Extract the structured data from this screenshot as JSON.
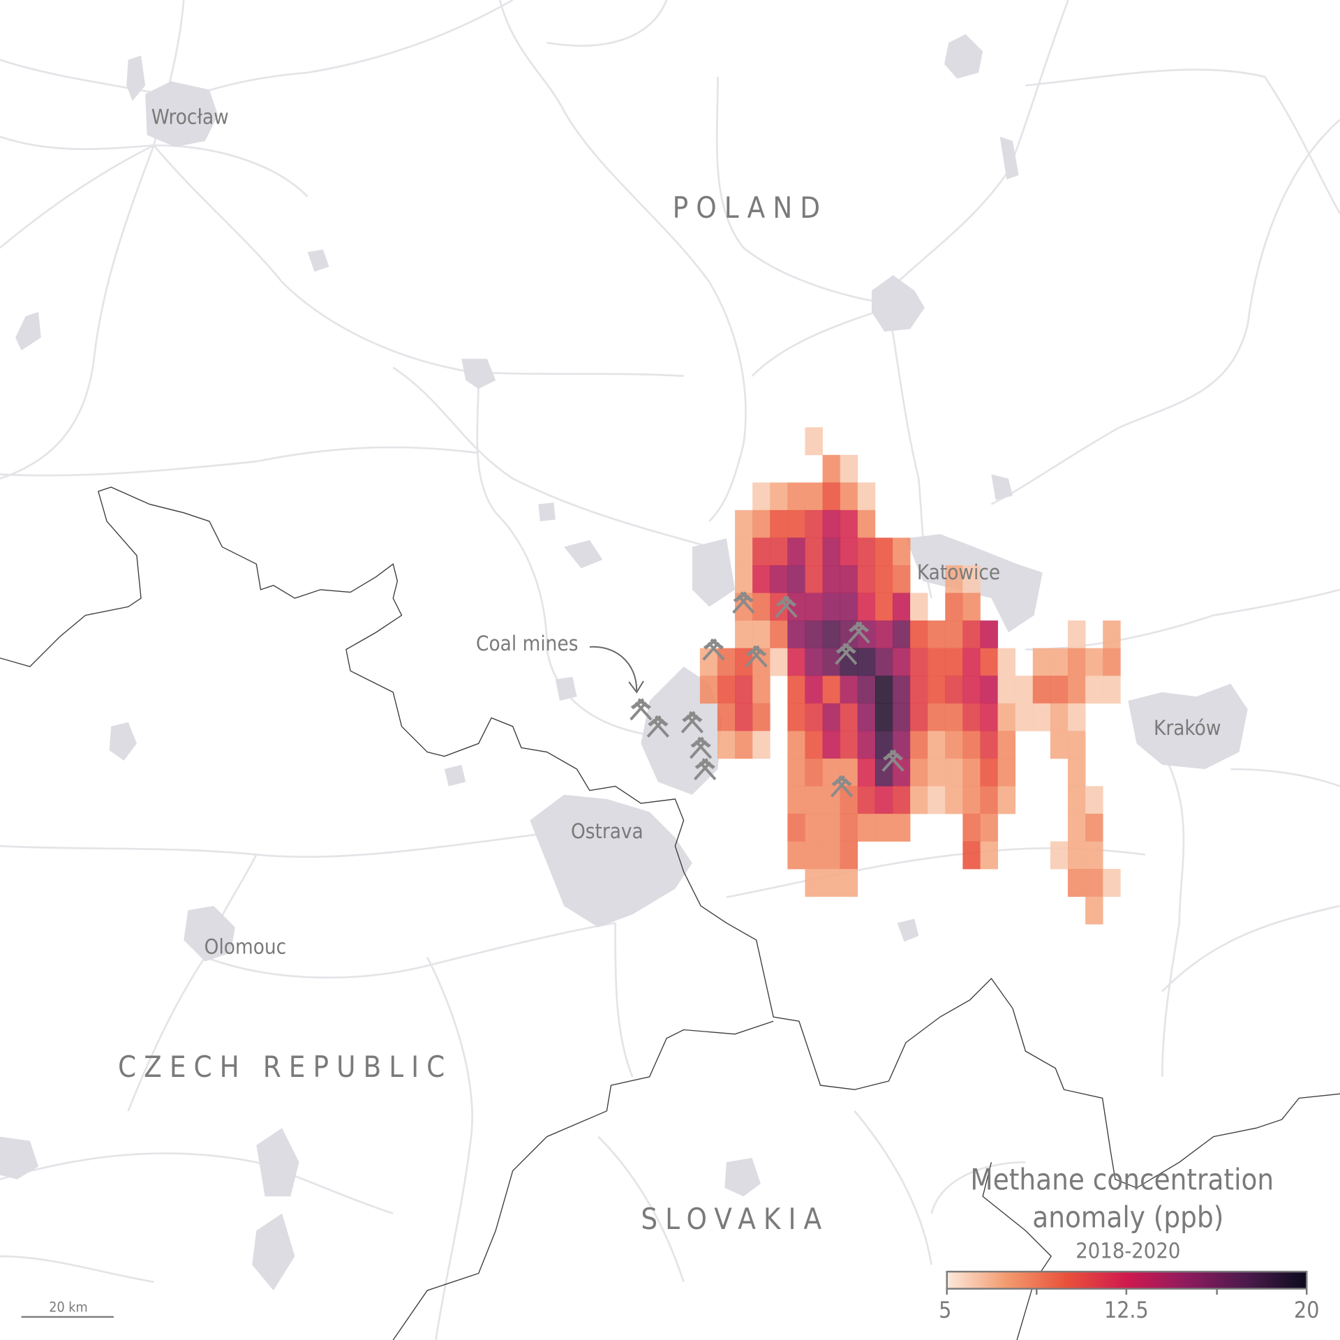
{
  "labels": {
    "cities": [
      "Wrocław",
      "Katowice",
      "Ostrava",
      "Kraków",
      "Olomouc"
    ],
    "countries": [
      "POLAND",
      "CZECH REPUBLIC",
      "SLOVAKIA"
    ],
    "annotation": "Coal mines"
  },
  "legend": {
    "title_line1": "Methane concentration",
    "title_line2": "anomaly (ppb)",
    "period": "2018-2020",
    "ticks": [
      "5",
      "12.5",
      "20"
    ],
    "range": [
      5,
      20
    ],
    "color_stops": [
      "#fbe9dc",
      "#f39a6e",
      "#e9513b",
      "#cf1a4f",
      "#8e1b5e",
      "#4b1a4c",
      "#0b0b1e"
    ]
  },
  "scale_bar": {
    "label": "20 km"
  },
  "icons": {
    "mine": "crossed-hammers-icon"
  },
  "chart_data": {
    "type": "heatmap",
    "title": "Methane concentration anomaly (ppb)",
    "subtitle": "2018-2020",
    "unit": "ppb",
    "zlim": [
      5,
      20
    ],
    "cells": [
      [
        0,
        6,
        6
      ],
      [
        1,
        7,
        8
      ],
      [
        1,
        8,
        6
      ],
      [
        2,
        3,
        6
      ],
      [
        2,
        4,
        7
      ],
      [
        2,
        5,
        8
      ],
      [
        2,
        6,
        8
      ],
      [
        2,
        7,
        10
      ],
      [
        2,
        8,
        8
      ],
      [
        2,
        9,
        6
      ],
      [
        3,
        2,
        7
      ],
      [
        3,
        3,
        8
      ],
      [
        3,
        4,
        10
      ],
      [
        3,
        5,
        10
      ],
      [
        3,
        6,
        11
      ],
      [
        3,
        7,
        13
      ],
      [
        3,
        8,
        12
      ],
      [
        3,
        9,
        8
      ],
      [
        4,
        2,
        7
      ],
      [
        4,
        3,
        11
      ],
      [
        4,
        4,
        11
      ],
      [
        4,
        5,
        14
      ],
      [
        4,
        6,
        11
      ],
      [
        4,
        7,
        14
      ],
      [
        4,
        8,
        12
      ],
      [
        4,
        9,
        11
      ],
      [
        4,
        10,
        10
      ],
      [
        4,
        11,
        8
      ],
      [
        5,
        2,
        7
      ],
      [
        5,
        3,
        12
      ],
      [
        5,
        4,
        14
      ],
      [
        5,
        5,
        15
      ],
      [
        5,
        6,
        11
      ],
      [
        5,
        7,
        14
      ],
      [
        5,
        8,
        14
      ],
      [
        5,
        9,
        11
      ],
      [
        5,
        10,
        10
      ],
      [
        5,
        11,
        9
      ],
      [
        5,
        14,
        7
      ],
      [
        5,
        15,
        6
      ],
      [
        6,
        2,
        8
      ],
      [
        6,
        3,
        9
      ],
      [
        6,
        4,
        11
      ],
      [
        6,
        5,
        14
      ],
      [
        6,
        6,
        14
      ],
      [
        6,
        7,
        15
      ],
      [
        6,
        8,
        15
      ],
      [
        6,
        9,
        12
      ],
      [
        6,
        10,
        10
      ],
      [
        6,
        11,
        13
      ],
      [
        6,
        12,
        6
      ],
      [
        6,
        14,
        9
      ],
      [
        6,
        15,
        8
      ],
      [
        7,
        2,
        7
      ],
      [
        7,
        3,
        7
      ],
      [
        7,
        4,
        9
      ],
      [
        7,
        5,
        15
      ],
      [
        7,
        6,
        16
      ],
      [
        7,
        7,
        17
      ],
      [
        7,
        8,
        16
      ],
      [
        7,
        9,
        15
      ],
      [
        7,
        10,
        14
      ],
      [
        7,
        11,
        16
      ],
      [
        7,
        12,
        10
      ],
      [
        7,
        13,
        9
      ],
      [
        7,
        14,
        9
      ],
      [
        7,
        15,
        11
      ],
      [
        7,
        16,
        13
      ],
      [
        7,
        21,
        6
      ],
      [
        7,
        23,
        7
      ],
      [
        8,
        0,
        7
      ],
      [
        8,
        1,
        9
      ],
      [
        8,
        2,
        10
      ],
      [
        8,
        3,
        8
      ],
      [
        8,
        4,
        6
      ],
      [
        8,
        5,
        12
      ],
      [
        8,
        6,
        15
      ],
      [
        8,
        7,
        16
      ],
      [
        8,
        8,
        18
      ],
      [
        8,
        9,
        18
      ],
      [
        8,
        10,
        16
      ],
      [
        8,
        11,
        14
      ],
      [
        8,
        12,
        11
      ],
      [
        8,
        13,
        10
      ],
      [
        8,
        14,
        10
      ],
      [
        8,
        15,
        12
      ],
      [
        8,
        16,
        10
      ],
      [
        8,
        17,
        6
      ],
      [
        8,
        19,
        7
      ],
      [
        8,
        20,
        7
      ],
      [
        8,
        21,
        8
      ],
      [
        8,
        22,
        7
      ],
      [
        8,
        23,
        8
      ],
      [
        9,
        0,
        8
      ],
      [
        9,
        1,
        10
      ],
      [
        9,
        2,
        11
      ],
      [
        9,
        3,
        8
      ],
      [
        9,
        5,
        10
      ],
      [
        9,
        6,
        13
      ],
      [
        9,
        7,
        10
      ],
      [
        9,
        8,
        14
      ],
      [
        9,
        9,
        16
      ],
      [
        9,
        10,
        19
      ],
      [
        9,
        11,
        16
      ],
      [
        9,
        12,
        11
      ],
      [
        9,
        13,
        10
      ],
      [
        9,
        14,
        11
      ],
      [
        9,
        15,
        12
      ],
      [
        9,
        16,
        13
      ],
      [
        9,
        17,
        6
      ],
      [
        9,
        18,
        6
      ],
      [
        9,
        19,
        9
      ],
      [
        9,
        20,
        9
      ],
      [
        9,
        21,
        8
      ],
      [
        9,
        22,
        6
      ],
      [
        9,
        23,
        6
      ],
      [
        10,
        1,
        9
      ],
      [
        10,
        2,
        11
      ],
      [
        10,
        3,
        9
      ],
      [
        10,
        5,
        10
      ],
      [
        10,
        6,
        11
      ],
      [
        10,
        7,
        14
      ],
      [
        10,
        8,
        11
      ],
      [
        10,
        9,
        15
      ],
      [
        10,
        10,
        19
      ],
      [
        10,
        11,
        16
      ],
      [
        10,
        12,
        11
      ],
      [
        10,
        13,
        9
      ],
      [
        10,
        14,
        9
      ],
      [
        10,
        15,
        11
      ],
      [
        10,
        16,
        12
      ],
      [
        10,
        17,
        7
      ],
      [
        10,
        18,
        6
      ],
      [
        10,
        19,
        6
      ],
      [
        10,
        20,
        7
      ],
      [
        10,
        21,
        6
      ],
      [
        11,
        1,
        7
      ],
      [
        11,
        2,
        8
      ],
      [
        11,
        3,
        6
      ],
      [
        11,
        5,
        8
      ],
      [
        11,
        6,
        10
      ],
      [
        11,
        7,
        13
      ],
      [
        11,
        8,
        11
      ],
      [
        11,
        9,
        14
      ],
      [
        11,
        10,
        18
      ],
      [
        11,
        11,
        15
      ],
      [
        11,
        12,
        9
      ],
      [
        11,
        13,
        7
      ],
      [
        11,
        14,
        8
      ],
      [
        11,
        15,
        9
      ],
      [
        11,
        16,
        11
      ],
      [
        11,
        17,
        8
      ],
      [
        11,
        20,
        7
      ],
      [
        11,
        21,
        7
      ],
      [
        12,
        5,
        8
      ],
      [
        12,
        6,
        9
      ],
      [
        12,
        7,
        8
      ],
      [
        12,
        8,
        8
      ],
      [
        12,
        9,
        12
      ],
      [
        12,
        10,
        17
      ],
      [
        12,
        11,
        14
      ],
      [
        12,
        12,
        8
      ],
      [
        12,
        13,
        7
      ],
      [
        12,
        14,
        7
      ],
      [
        12,
        15,
        8
      ],
      [
        12,
        16,
        10
      ],
      [
        12,
        17,
        8
      ],
      [
        12,
        21,
        7
      ],
      [
        13,
        5,
        8
      ],
      [
        13,
        6,
        8
      ],
      [
        13,
        7,
        8
      ],
      [
        13,
        8,
        9
      ],
      [
        13,
        9,
        11
      ],
      [
        13,
        10,
        12
      ],
      [
        13,
        11,
        11
      ],
      [
        13,
        12,
        7
      ],
      [
        13,
        13,
        6
      ],
      [
        13,
        14,
        7
      ],
      [
        13,
        15,
        8
      ],
      [
        13,
        16,
        9
      ],
      [
        13,
        17,
        7
      ],
      [
        13,
        21,
        7
      ],
      [
        13,
        22,
        6
      ],
      [
        14,
        5,
        9
      ],
      [
        14,
        6,
        8
      ],
      [
        14,
        7,
        8
      ],
      [
        14,
        8,
        9
      ],
      [
        14,
        9,
        8
      ],
      [
        14,
        10,
        8
      ],
      [
        14,
        11,
        8
      ],
      [
        14,
        15,
        9
      ],
      [
        14,
        16,
        8
      ],
      [
        14,
        21,
        7
      ],
      [
        14,
        22,
        8
      ],
      [
        15,
        5,
        8
      ],
      [
        15,
        6,
        8
      ],
      [
        15,
        7,
        8
      ],
      [
        15,
        8,
        9
      ],
      [
        15,
        15,
        10
      ],
      [
        15,
        16,
        7
      ],
      [
        15,
        20,
        6
      ],
      [
        15,
        21,
        7
      ],
      [
        15,
        22,
        7
      ],
      [
        16,
        6,
        7
      ],
      [
        16,
        7,
        7
      ],
      [
        16,
        8,
        7
      ],
      [
        16,
        21,
        8
      ],
      [
        16,
        22,
        8
      ],
      [
        16,
        23,
        6
      ],
      [
        17,
        22,
        7
      ]
    ]
  }
}
